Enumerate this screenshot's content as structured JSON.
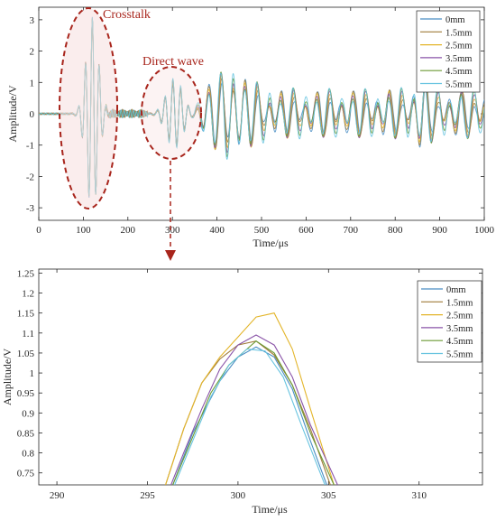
{
  "colors": {
    "0mm": "#4a8ec4",
    "1.5mm": "#a07b3a",
    "2.5mm": "#e3b52a",
    "3.5mm": "#8a54a8",
    "4.5mm": "#6c9a34",
    "5.5mm": "#68c4e0",
    "annotation": "#a8251c",
    "annotation_fill": "#f6dede",
    "axis": "#262626"
  },
  "annotations": {
    "crosstalk": "Crosstalk",
    "direct_wave": "Direct wave"
  },
  "chart_data": [
    {
      "type": "line",
      "xlabel": "Time/μs",
      "ylabel": "Amplitude/V",
      "xlim": [
        0,
        1000
      ],
      "ylim": [
        -3.4,
        3.4
      ],
      "xticks": [
        0,
        100,
        200,
        300,
        400,
        500,
        600,
        700,
        800,
        900,
        1000
      ],
      "yticks": [
        -3,
        -2,
        -1,
        0,
        1,
        2,
        3
      ],
      "legend_position": "top-right",
      "grid": false,
      "series_names": [
        "0mm",
        "1.5mm",
        "2.5mm",
        "3.5mm",
        "4.5mm",
        "5.5mm"
      ],
      "crosstalk_peaks": [
        {
          "x": 80,
          "y": 0.05
        },
        {
          "x": 95,
          "y": -0.7
        },
        {
          "x": 105,
          "y": 1.9
        },
        {
          "x": 112,
          "y": -2.85
        },
        {
          "x": 120,
          "y": 3.25
        },
        {
          "x": 128,
          "y": -2.1
        },
        {
          "x": 142,
          "y": 2.0
        },
        {
          "x": 150,
          "y": -1.0
        },
        {
          "x": 160,
          "y": 0.4
        }
      ],
      "direct_wave_peaks": [
        {
          "x": 270,
          "y": -0.35
        },
        {
          "x": 285,
          "y": 0.6
        },
        {
          "x": 292,
          "y": -0.55
        },
        {
          "x": 301,
          "y": 1.07
        },
        {
          "x": 310,
          "y": -0.95
        },
        {
          "x": 320,
          "y": 0.8
        },
        {
          "x": 330,
          "y": -1.0
        },
        {
          "x": 342,
          "y": 0.7
        }
      ],
      "tail_envelope": [
        {
          "x": 400,
          "y": 1.15
        },
        {
          "x": 500,
          "y": 1.05
        },
        {
          "x": 600,
          "y": 0.6
        },
        {
          "x": 700,
          "y": 0.5
        },
        {
          "x": 800,
          "y": 0.45
        },
        {
          "x": 860,
          "y": 1.0
        },
        {
          "x": 1000,
          "y": 0.4
        }
      ]
    },
    {
      "type": "line",
      "xlabel": "Time/μs",
      "ylabel": "Amplitude/V",
      "xlim": [
        289,
        313.5
      ],
      "ylim": [
        0.72,
        1.26
      ],
      "xticks": [
        290,
        295,
        300,
        305,
        310
      ],
      "yticks": [
        0.75,
        0.8,
        0.85,
        0.9,
        0.95,
        1,
        1.05,
        1.1,
        1.15,
        1.2,
        1.25
      ],
      "legend_position": "top-right",
      "grid": false,
      "series": [
        {
          "name": "0mm",
          "x": [
            296.4,
            297.5,
            299,
            300,
            301,
            302,
            303,
            304,
            304.9
          ],
          "y": [
            0.72,
            0.85,
            0.98,
            1.04,
            1.065,
            1.04,
            0.96,
            0.83,
            0.72
          ]
        },
        {
          "name": "1.5mm",
          "x": [
            296.0,
            297,
            298,
            299,
            300,
            301,
            302,
            303,
            304,
            305.1
          ],
          "y": [
            0.72,
            0.86,
            0.975,
            1.035,
            1.07,
            1.08,
            1.045,
            0.97,
            0.86,
            0.72
          ]
        },
        {
          "name": "2.5mm",
          "x": [
            296.0,
            297,
            298,
            299,
            300,
            301,
            302,
            303,
            304,
            305.3
          ],
          "y": [
            0.72,
            0.86,
            0.975,
            1.04,
            1.09,
            1.14,
            1.15,
            1.06,
            0.91,
            0.72
          ]
        },
        {
          "name": "3.5mm",
          "x": [
            296.3,
            297,
            298,
            299,
            300,
            301,
            302,
            303,
            304,
            305.5
          ],
          "y": [
            0.72,
            0.8,
            0.91,
            1.01,
            1.07,
            1.095,
            1.07,
            0.99,
            0.87,
            0.72
          ]
        },
        {
          "name": "4.5mm",
          "x": [
            296.4,
            297.5,
            298.5,
            299.5,
            300.5,
            301,
            302,
            303,
            304,
            305.3
          ],
          "y": [
            0.72,
            0.84,
            0.95,
            1.02,
            1.06,
            1.08,
            1.05,
            0.97,
            0.85,
            0.72
          ]
        },
        {
          "name": "5.5mm",
          "x": [
            296.5,
            297.5,
            298.5,
            299.5,
            300.5,
            301.5,
            302.5,
            303.5,
            304.8
          ],
          "y": [
            0.72,
            0.83,
            0.94,
            1.02,
            1.06,
            1.055,
            0.99,
            0.87,
            0.72
          ]
        }
      ]
    }
  ]
}
